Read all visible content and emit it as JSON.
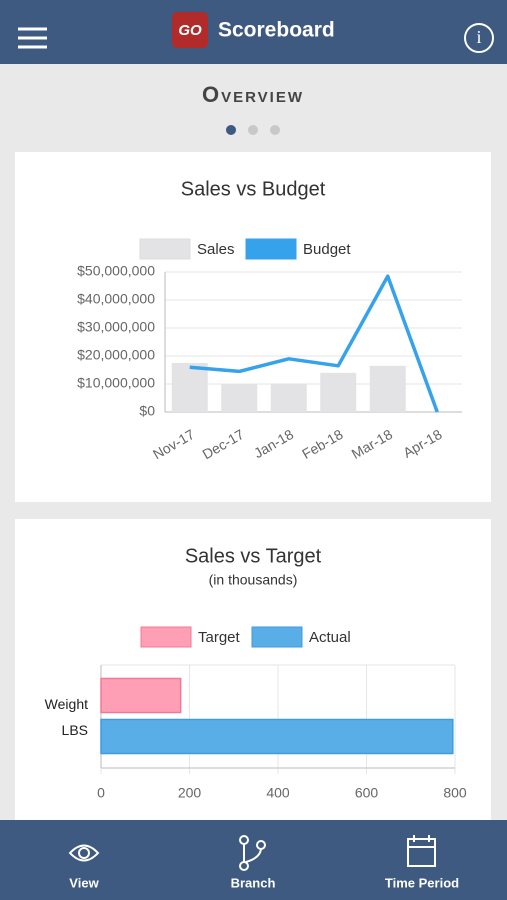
{
  "header": {
    "logo": "GO",
    "title": "Scoreboard"
  },
  "page": {
    "heading": "Overview"
  },
  "chart_data": [
    {
      "type": "bar",
      "title": "Sales vs Budget",
      "categories": [
        "Nov-17",
        "Dec-17",
        "Jan-18",
        "Feb-18",
        "Mar-18",
        "Apr-18"
      ],
      "series": [
        {
          "name": "Sales",
          "color": "#e3e3e5",
          "values": [
            17500000,
            10000000,
            10200000,
            14000000,
            16500000,
            null
          ]
        },
        {
          "name": "Budget",
          "color": "#36a2eb",
          "type": "line",
          "values": [
            16000000,
            14500000,
            19000000,
            16500000,
            48500000,
            0
          ]
        }
      ],
      "ylim": [
        0,
        50000000
      ],
      "yticks": [
        {
          "value": 0,
          "label": "$0"
        },
        {
          "value": 10000000,
          "label": "$10,000,000"
        },
        {
          "value": 20000000,
          "label": "$20,000,000"
        },
        {
          "value": 30000000,
          "label": "$30,000,000"
        },
        {
          "value": 40000000,
          "label": "$40,000,000"
        },
        {
          "value": 50000000,
          "label": "$50,000,000"
        }
      ],
      "grid": true,
      "legend": "top"
    },
    {
      "type": "barh",
      "title": "Sales vs Target",
      "subtitle": "(in thousands)",
      "categories": [
        [
          "Weight",
          "LBS"
        ]
      ],
      "series": [
        {
          "name": "Target",
          "color": "#ff9fb5",
          "values": [
            180
          ]
        },
        {
          "name": "Actual",
          "color": "#5aaee8",
          "values": [
            795
          ]
        }
      ],
      "xlim": [
        0,
        800
      ],
      "xticks": [
        0,
        200,
        400,
        600,
        800
      ],
      "grid": true,
      "legend": "top"
    }
  ],
  "nav": [
    "View",
    "Branch",
    "Time Period"
  ]
}
